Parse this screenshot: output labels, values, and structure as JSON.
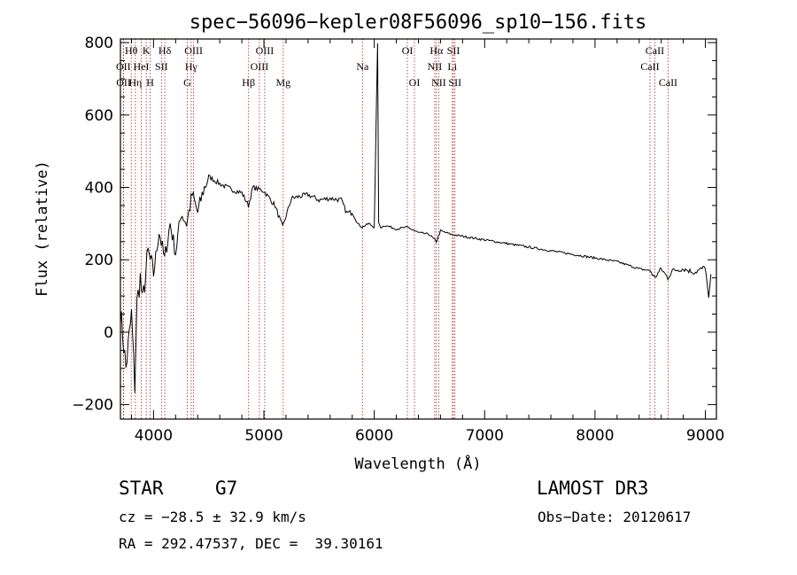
{
  "chart_data": {
    "type": "line",
    "title": "spec−56096−kepler08F56096_sp10−156.fits",
    "xlabel": "Wavelength (Å)",
    "ylabel": "Flux (relative)",
    "xlim": [
      3700,
      9100
    ],
    "ylim": [
      -240,
      810
    ],
    "xticks": [
      4000,
      5000,
      6000,
      7000,
      8000,
      9000
    ],
    "xtick_labels": [
      "4000",
      "5000",
      "6000",
      "7000",
      "8000",
      "9000"
    ],
    "yticks": [
      -200,
      0,
      200,
      400,
      600,
      800
    ],
    "ytick_labels": [
      "−200",
      "0",
      "200",
      "400",
      "600",
      "800"
    ],
    "series": [
      {
        "name": "flux",
        "x": [
          3700,
          3750,
          3800,
          3830,
          3850,
          3880,
          3900,
          3950,
          4000,
          4050,
          4100,
          4150,
          4200,
          4250,
          4300,
          4350,
          4400,
          4450,
          4500,
          4600,
          4700,
          4800,
          4860,
          4900,
          5000,
          5100,
          5170,
          5250,
          5400,
          5500,
          5600,
          5700,
          5750,
          5800,
          5850,
          5890,
          5950,
          6000,
          6030,
          6040,
          6060,
          6100,
          6200,
          6300,
          6400,
          6500,
          6563,
          6600,
          6700,
          6800,
          7000,
          7200,
          7500,
          7800,
          8000,
          8200,
          8400,
          8500,
          8540,
          8600,
          8660,
          8700,
          8800,
          8900,
          9000,
          9030,
          9050
        ],
        "values": [
          60,
          -100,
          50,
          -150,
          80,
          150,
          80,
          220,
          160,
          280,
          200,
          300,
          220,
          330,
          300,
          380,
          330,
          390,
          430,
          410,
          395,
          385,
          350,
          400,
          390,
          350,
          290,
          370,
          380,
          365,
          370,
          365,
          330,
          330,
          300,
          290,
          300,
          290,
          800,
          300,
          290,
          295,
          285,
          290,
          275,
          270,
          250,
          280,
          270,
          265,
          255,
          245,
          230,
          215,
          205,
          195,
          175,
          170,
          150,
          175,
          150,
          170,
          175,
          165,
          180,
          90,
          160
        ]
      }
    ],
    "lines": [
      {
        "label": "Hθ",
        "x": 3798,
        "row": 0
      },
      {
        "label": "OII",
        "x": 3727,
        "row": 1
      },
      {
        "label": "OII",
        "x": 3729,
        "row": 2
      },
      {
        "label": "K",
        "x": 3934,
        "row": 0
      },
      {
        "label": "Hη",
        "x": 3835,
        "row": 2
      },
      {
        "label": "HeI",
        "x": 3889,
        "row": 1
      },
      {
        "label": "H",
        "x": 3969,
        "row": 2
      },
      {
        "label": "SII",
        "x": 4072,
        "row": 1
      },
      {
        "label": "Hδ",
        "x": 4102,
        "row": 0
      },
      {
        "label": "OIII",
        "x": 4363,
        "row": 0
      },
      {
        "label": "Hγ",
        "x": 4341,
        "row": 1
      },
      {
        "label": "G",
        "x": 4305,
        "row": 2
      },
      {
        "label": "Hβ",
        "x": 4861,
        "row": 2
      },
      {
        "label": "OIII",
        "x": 5007,
        "row": 0
      },
      {
        "label": "OIII",
        "x": 4959,
        "row": 1
      },
      {
        "label": "Mg",
        "x": 5175,
        "row": 2
      },
      {
        "label": "Na",
        "x": 5893,
        "row": 1
      },
      {
        "label": "OI",
        "x": 6300,
        "row": 0
      },
      {
        "label": "OI",
        "x": 6364,
        "row": 2
      },
      {
        "label": "Hα",
        "x": 6563,
        "row": 0
      },
      {
        "label": "NII",
        "x": 6548,
        "row": 1
      },
      {
        "label": "NII",
        "x": 6584,
        "row": 2
      },
      {
        "label": "SII",
        "x": 6717,
        "row": 0
      },
      {
        "label": "Li",
        "x": 6707,
        "row": 1
      },
      {
        "label": "SII",
        "x": 6731,
        "row": 2
      },
      {
        "label": "CaII",
        "x": 8542,
        "row": 0
      },
      {
        "label": "CaII",
        "x": 8498,
        "row": 1
      },
      {
        "label": "CaII",
        "x": 8662,
        "row": 2
      }
    ]
  },
  "info": {
    "class": "STAR",
    "subclass": "G7",
    "survey": "LAMOST DR3",
    "cz": "cz = −28.5 ± 32.9 km/s",
    "obs_date": "Obs−Date: 20120617",
    "coords": "RA = 292.47537, DEC =  39.30161"
  }
}
